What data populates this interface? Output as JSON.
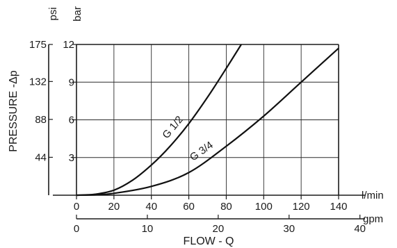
{
  "chart_data": {
    "type": "line",
    "ylabel": "PRESSURE -Δp",
    "xlabel": "FLOW - Q",
    "x_units": {
      "primary": "l/min",
      "secondary": "gpm"
    },
    "y_units": {
      "primary": "bar",
      "secondary": "psi"
    },
    "xlim": [
      0,
      140
    ],
    "ylim": [
      0,
      12
    ],
    "grid": true,
    "x_ticks": [
      "0",
      "20",
      "40",
      "60",
      "80",
      "100",
      "120",
      "140"
    ],
    "x_ticks_values": [
      0,
      20,
      40,
      60,
      80,
      100,
      120,
      140
    ],
    "gpm_ticks": [
      "0",
      "10",
      "20",
      "30",
      "40"
    ],
    "gpm_ticks_values": [
      0,
      10,
      20,
      30,
      40
    ],
    "y_ticks": [
      "3",
      "6",
      "9",
      "12"
    ],
    "y_ticks_values": [
      3,
      6,
      9,
      12
    ],
    "psi_ticks": [
      "44",
      "88",
      "132",
      "175"
    ],
    "psi_ticks_values": [
      44,
      88,
      132,
      175
    ],
    "series": [
      {
        "name": "G 1/2",
        "x": [
          0,
          10,
          20,
          30,
          40,
          50,
          60,
          70,
          80,
          88
        ],
        "y": [
          0,
          0.08,
          0.4,
          1.2,
          2.4,
          3.9,
          5.7,
          7.8,
          10.1,
          12
        ]
      },
      {
        "name": "G 3/4",
        "x": [
          0,
          10,
          20,
          40,
          60,
          80,
          100,
          120,
          140
        ],
        "y": [
          0,
          0.03,
          0.15,
          0.7,
          1.8,
          3.9,
          6.3,
          9.0,
          11.7
        ]
      }
    ]
  }
}
